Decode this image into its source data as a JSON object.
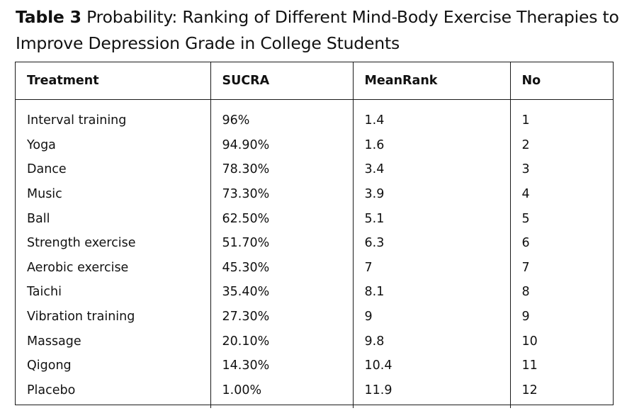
{
  "caption": {
    "label": "Table 3",
    "text": "Probability: Ranking of Different Mind-Body Exercise Therapies to Improve Depression Grade in College Students"
  },
  "table": {
    "headers": [
      "Treatment",
      "SUCRA",
      "MeanRank",
      "No"
    ],
    "rows": [
      [
        "Interval training",
        "96%",
        "1.4",
        "1"
      ],
      [
        "Yoga",
        "94.90%",
        "1.6",
        "2"
      ],
      [
        "Dance",
        "78.30%",
        "3.4",
        "3"
      ],
      [
        "Music",
        "73.30%",
        "3.9",
        "4"
      ],
      [
        "Ball",
        "62.50%",
        "5.1",
        "5"
      ],
      [
        "Strength exercise",
        "51.70%",
        "6.3",
        "6"
      ],
      [
        "Aerobic exercise",
        "45.30%",
        "7",
        "7"
      ],
      [
        "Taichi",
        "35.40%",
        "8.1",
        "8"
      ],
      [
        "Vibration training",
        "27.30%",
        "9",
        "9"
      ],
      [
        "Massage",
        "20.10%",
        "9.8",
        "10"
      ],
      [
        "Qigong",
        "14.30%",
        "10.4",
        "11"
      ],
      [
        "Placebo",
        "1.00%",
        "11.9",
        "12"
      ]
    ]
  }
}
